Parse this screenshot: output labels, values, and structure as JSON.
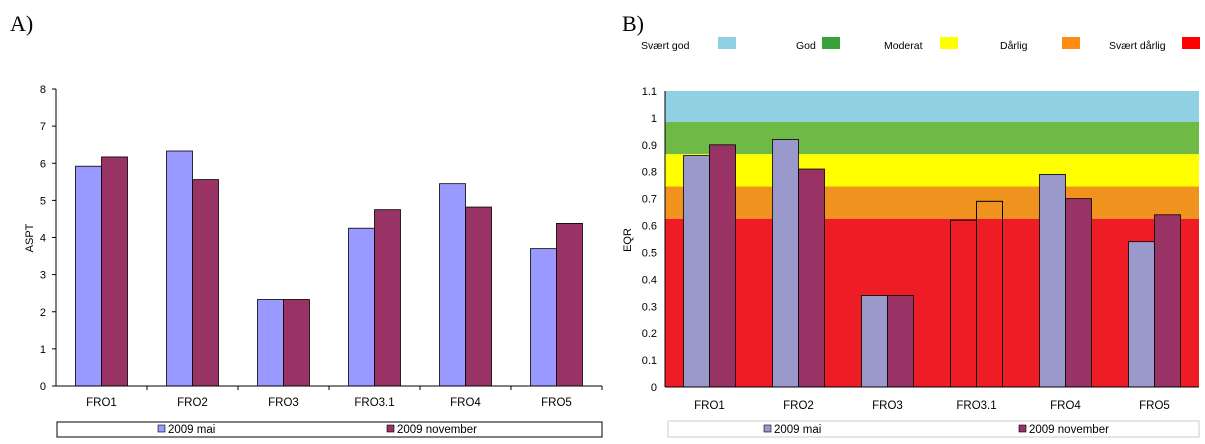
{
  "chart_data": [
    {
      "panel_label": "A)",
      "type": "bar",
      "categories": [
        "FRO1",
        "FRO2",
        "FRO3",
        "FRO3.1",
        "FRO4",
        "FRO5"
      ],
      "series": [
        {
          "name": "2009 mai",
          "values": [
            5.92,
            6.33,
            2.33,
            4.25,
            5.45,
            3.7
          ],
          "color": "#9999ff"
        },
        {
          "name": "2009 november",
          "values": [
            6.17,
            5.56,
            2.33,
            4.75,
            4.82,
            4.38
          ],
          "color": "#993366"
        }
      ],
      "ylabel": "ASPT",
      "xlabel": "",
      "ylim": [
        0,
        8
      ],
      "yticks": [
        "0",
        "1",
        "2",
        "3",
        "4",
        "5",
        "6",
        "7",
        "8"
      ],
      "grid": false,
      "legend_position": "bottom"
    },
    {
      "panel_label": "B)",
      "type": "bar",
      "categories": [
        "FRO1",
        "FRO2",
        "FRO3",
        "FRO3.1",
        "FRO4",
        "FRO5"
      ],
      "series": [
        {
          "name": "2009 mai",
          "values": [
            0.86,
            0.92,
            0.34,
            0.62,
            0.79,
            0.54
          ],
          "color": "#9999cc"
        },
        {
          "name": "2009 november",
          "values": [
            0.9,
            0.81,
            0.34,
            0.69,
            0.7,
            0.64
          ],
          "color": "#993366"
        }
      ],
      "unfilled_categories": [
        "FRO3.1"
      ],
      "ylabel": "EQR",
      "xlabel": "",
      "ylim": [
        0,
        1.1
      ],
      "yticks": [
        "0",
        "0.1",
        "0.2",
        "0.3",
        "0.4",
        "0.5",
        "0.6",
        "0.7",
        "0.8",
        "0.9",
        "1",
        "1.1"
      ],
      "grid": false,
      "legend_position": "bottom",
      "background_bands": [
        {
          "label": "Svært god",
          "from": 0.985,
          "to": 1.1,
          "color": "#8fd1e2"
        },
        {
          "label": "God",
          "from": 0.865,
          "to": 0.985,
          "color": "#6fba44"
        },
        {
          "label": "Moderat",
          "from": 0.745,
          "to": 0.865,
          "color": "#ffff00"
        },
        {
          "label": "Dårlig",
          "from": 0.625,
          "to": 0.745,
          "color": "#f0921e"
        },
        {
          "label": "Svært dårlig",
          "from": 0,
          "to": 0.625,
          "color": "#ee1c25"
        }
      ],
      "band_legend_swatches": [
        "#8fd1e2",
        "#3aa23a",
        "#ffff00",
        "#ff8c10",
        "#ff0000"
      ]
    }
  ]
}
